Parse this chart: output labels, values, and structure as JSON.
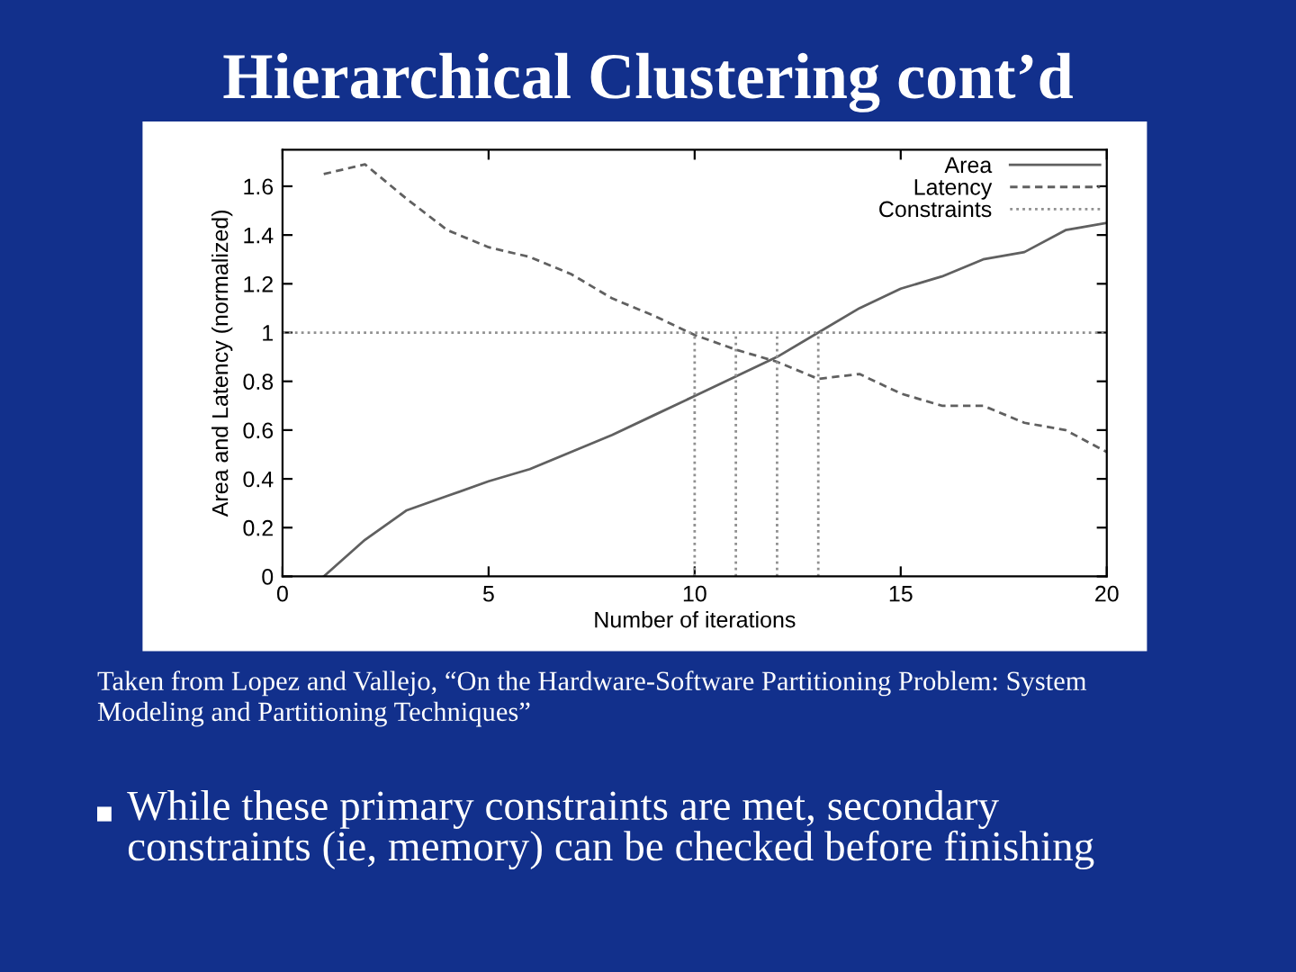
{
  "chart_data": {
    "type": "line",
    "title": "Hierarchical Clustering cont’d",
    "xlabel": "Number of iterations",
    "ylabel": "Area and Latency (normalized)",
    "x": [
      1,
      2,
      3,
      4,
      5,
      6,
      7,
      8,
      9,
      10,
      11,
      12,
      13,
      14,
      15,
      16,
      17,
      18,
      19,
      20
    ],
    "series": [
      {
        "name": "Area",
        "color": "#606060",
        "line_style": "solid",
        "values": [
          0,
          0.15,
          0.27,
          0.33,
          0.39,
          0.44,
          0.51,
          0.58,
          0.66,
          0.74,
          0.82,
          0.9,
          1.0,
          1.1,
          1.18,
          1.23,
          1.3,
          1.33,
          1.42,
          1.45
        ]
      },
      {
        "name": "Latency",
        "color": "#606060",
        "line_style": "dashed",
        "values": [
          1.65,
          1.69,
          1.55,
          1.42,
          1.35,
          1.31,
          1.24,
          1.14,
          1.07,
          0.99,
          0.93,
          0.88,
          0.81,
          0.83,
          0.75,
          0.7,
          0.7,
          0.63,
          0.6,
          0.51
        ]
      },
      {
        "name": "Constraints",
        "color": "#909090",
        "line_style": "dotted",
        "x": [
          0,
          20
        ],
        "values": [
          1,
          1
        ]
      }
    ],
    "ref_lines": [
      {
        "axis": "x",
        "value": 10,
        "color": "#909090",
        "line_style": "dotted"
      },
      {
        "axis": "x",
        "value": 11,
        "color": "#909090",
        "line_style": "dotted"
      },
      {
        "axis": "x",
        "value": 12,
        "color": "#909090",
        "line_style": "dotted"
      },
      {
        "axis": "x",
        "value": 13,
        "color": "#909090",
        "line_style": "dotted"
      }
    ],
    "xlim": [
      0,
      20
    ],
    "xticks": [
      0,
      5,
      10,
      15,
      20
    ],
    "ylim": [
      0,
      1.75
    ],
    "yticks": [
      0,
      0.2,
      0.4,
      0.6,
      0.8,
      1,
      1.2,
      1.4,
      1.6
    ],
    "grid": false,
    "legend": "top right",
    "marker": "none",
    "annotations": [
      "Taken from Lopez and Vallejo, “On the Hardware-Software Partitioning Problem: System Modeling and Partitioning Techniques”",
      "While these primary constraints are met, secondary constraints (ie, memory) can be checked before finishing"
    ]
  }
}
